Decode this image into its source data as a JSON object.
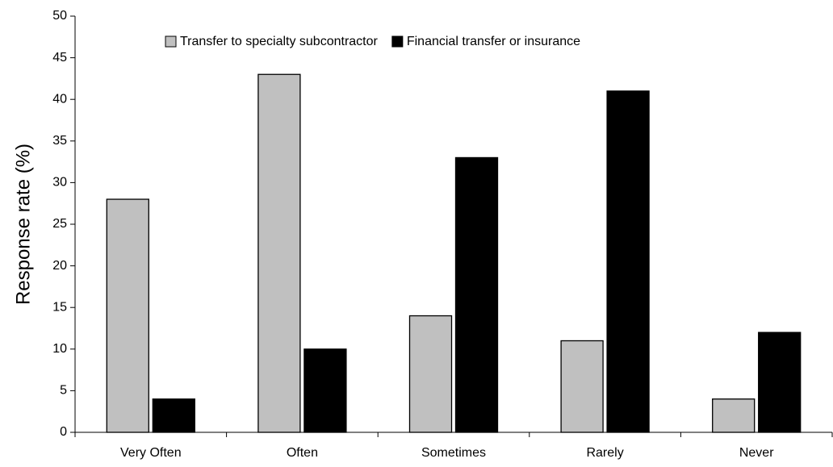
{
  "chart_data": {
    "type": "bar",
    "ylabel": "Response rate (%)",
    "categories": [
      "Very Often",
      "Often",
      "Sometimes",
      "Rarely",
      "Never"
    ],
    "series": [
      {
        "name": "Transfer to specialty subcontractor",
        "color": "#c0c0c0",
        "values": [
          28,
          43,
          14,
          11,
          4
        ]
      },
      {
        "name": "Financial transfer or insurance",
        "color": "#000000",
        "values": [
          4,
          10,
          33,
          41,
          12
        ]
      }
    ],
    "ylim": [
      0,
      50
    ],
    "yticks": [
      0,
      5,
      10,
      15,
      20,
      25,
      30,
      35,
      40,
      45,
      50
    ],
    "grid": false,
    "legend": "top"
  }
}
